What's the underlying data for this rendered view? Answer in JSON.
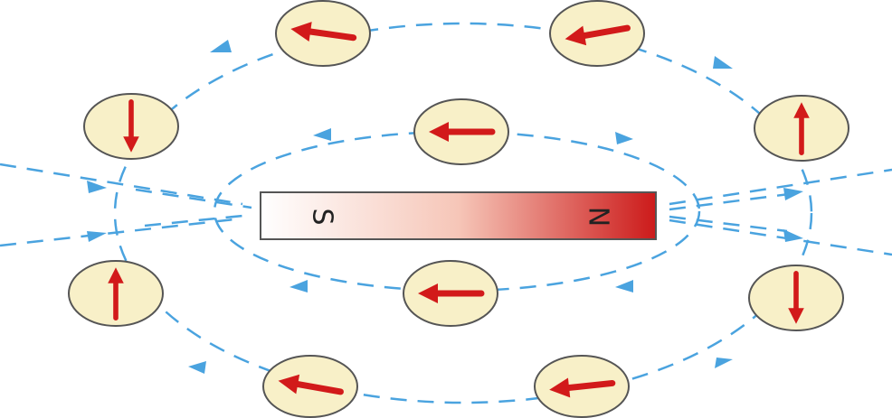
{
  "magnet": {
    "south_label": "S",
    "north_label": "N"
  }
}
